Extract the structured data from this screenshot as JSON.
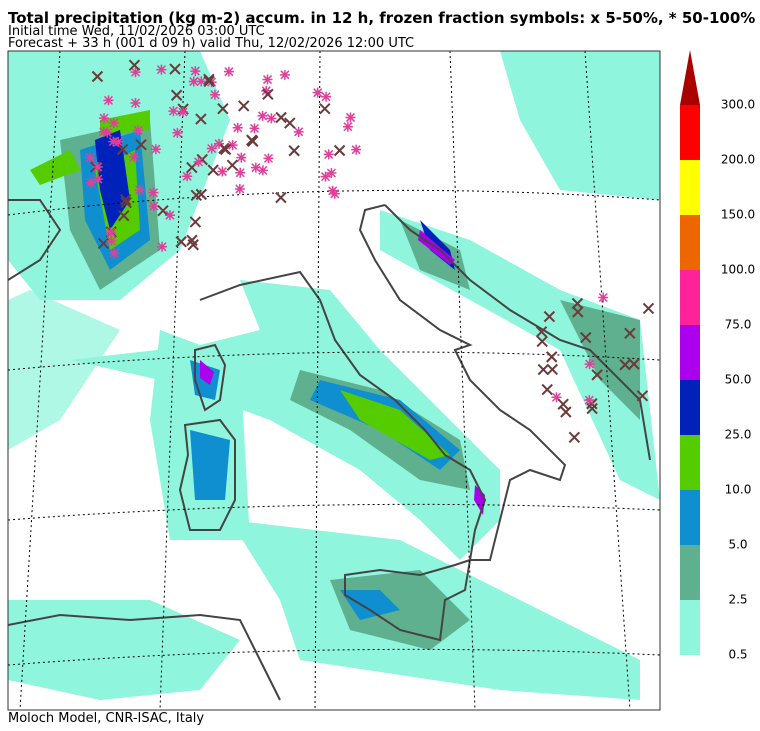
{
  "header": {
    "title": "Total precipitation (kg m-2) accum. in 12 h, frozen fraction symbols: x 5-50%, * 50-100%",
    "initial_time": "Initial time  Wed, 11/02/2026  03:00 UTC",
    "forecast": "Forecast  +  33 h  (001 d 09 h)  valid Thu, 12/02/2026 12:00 UTC"
  },
  "colorbar": {
    "ticks": [
      0.5,
      2.5,
      {
        "value": 5,
        "label": "5.0"
      },
      {
        "value": 10,
        "label": "10.0"
      },
      {
        "value": 25,
        "label": "25.0"
      },
      {
        "value": 50,
        "label": "50.0"
      },
      {
        "value": 75,
        "label": "75.0"
      },
      {
        "value": 100,
        "label": "100.0"
      },
      {
        "value": 150,
        "label": "150.0"
      },
      {
        "value": 200,
        "label": "200.0"
      },
      {
        "value": 300,
        "label": "300.0"
      }
    ],
    "colors": [
      "#8ff5dc",
      "#5fb08f",
      "#0f8fcf",
      "#55cc00",
      "#0022bb",
      "#aa00ee",
      "#ff2299",
      "#ee6600",
      "#ffff00",
      "#ff0000",
      "#aa0000"
    ]
  },
  "footer": {
    "credit": "Moloch Model, CNR-ISAC, Italy"
  }
}
